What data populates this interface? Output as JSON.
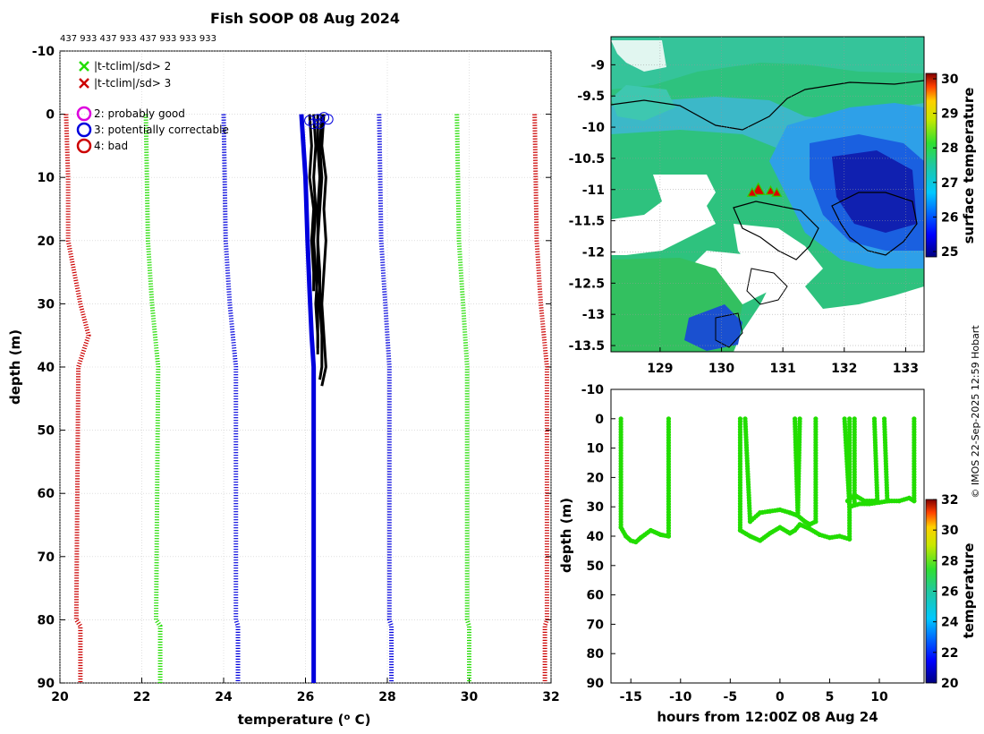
{
  "title": "Fish SOOP 08 Aug 2024",
  "cast_ids": "437 933 437 933 437 933 933 933",
  "copyright": "© IMOS 22-Sep-2025 12:59 Hobart",
  "colors": {
    "green": "#22dd00",
    "blue": "#0000dd",
    "red": "#cc0000",
    "magenta": "#dd00dd",
    "black": "#000000"
  },
  "chart_data": [
    {
      "id": "profile",
      "type": "line",
      "xlabel": "temperature (o C)",
      "xlabel_parts": [
        "temperature (",
        "o",
        " C)"
      ],
      "ylabel": "depth (m)",
      "xlim": [
        20,
        32
      ],
      "ylim": [
        -10,
        90
      ],
      "xticks": [
        "20",
        "22",
        "24",
        "26",
        "28",
        "30",
        "32"
      ],
      "yticks": [
        "-10",
        "0",
        "10",
        "20",
        "30",
        "40",
        "50",
        "60",
        "70",
        "80",
        "90"
      ],
      "legend": [
        {
          "marker": "x",
          "color": "#22dd00",
          "label": "|t-tclim|/sd> 2"
        },
        {
          "marker": "x",
          "color": "#cc0000",
          "label": "|t-tclim|/sd> 3"
        },
        {
          "marker": "o",
          "color": "#dd00dd",
          "label": "2: probably good"
        },
        {
          "marker": "o",
          "color": "#0000dd",
          "label": "3: potentially correctable"
        },
        {
          "marker": "o",
          "color": "#cc0000",
          "label": "4: bad"
        }
      ],
      "series": [
        {
          "name": "clim -3sd",
          "color": "#cc0000",
          "style": "dotted",
          "depth": [
            0,
            10,
            20,
            30,
            35,
            40,
            80,
            81,
            90
          ],
          "temp": [
            20.15,
            20.2,
            20.2,
            20.5,
            20.7,
            20.45,
            20.4,
            20.5,
            20.5
          ]
        },
        {
          "name": "clim -2sd",
          "color": "#22dd00",
          "style": "dotted",
          "depth": [
            0,
            20,
            30,
            40,
            80,
            81,
            90
          ],
          "temp": [
            22.1,
            22.15,
            22.25,
            22.4,
            22.35,
            22.45,
            22.45
          ]
        },
        {
          "name": "clim -1sd",
          "color": "#0000dd",
          "style": "dotted",
          "depth": [
            0,
            20,
            30,
            40,
            80,
            81,
            90
          ],
          "temp": [
            24.0,
            24.05,
            24.15,
            24.3,
            24.3,
            24.35,
            24.35
          ]
        },
        {
          "name": "clim mean",
          "color": "#0000dd",
          "style": "solid",
          "depth": [
            0,
            5,
            10,
            20,
            28,
            35,
            40,
            80,
            81,
            90
          ],
          "temp": [
            25.9,
            25.95,
            26.0,
            26.05,
            26.1,
            26.15,
            26.2,
            26.2,
            26.2,
            26.2
          ]
        },
        {
          "name": "clim +1sd",
          "color": "#0000dd",
          "style": "dotted",
          "depth": [
            0,
            20,
            30,
            40,
            80,
            81,
            90
          ],
          "temp": [
            27.8,
            27.85,
            27.95,
            28.05,
            28.05,
            28.1,
            28.1
          ]
        },
        {
          "name": "clim +2sd",
          "color": "#22dd00",
          "style": "dotted",
          "depth": [
            0,
            20,
            30,
            40,
            80,
            81,
            90
          ],
          "temp": [
            29.7,
            29.75,
            29.85,
            29.95,
            29.95,
            30.0,
            30.0
          ]
        },
        {
          "name": "clim +3sd",
          "color": "#cc0000",
          "style": "dotted",
          "depth": [
            0,
            20,
            30,
            40,
            80,
            81,
            90
          ],
          "temp": [
            31.6,
            31.65,
            31.75,
            31.9,
            31.9,
            31.85,
            31.85
          ]
        }
      ],
      "casts": [
        {
          "depth": [
            0,
            5,
            10,
            15,
            20,
            25,
            30,
            35,
            38
          ],
          "temp": [
            26.2,
            26.25,
            26.2,
            26.25,
            26.2,
            26.25,
            26.3,
            26.3,
            26.3
          ]
        },
        {
          "depth": [
            0,
            5,
            10,
            15,
            20,
            25,
            30,
            35,
            40,
            42
          ],
          "temp": [
            26.3,
            26.3,
            26.35,
            26.3,
            26.3,
            26.35,
            26.35,
            26.4,
            26.4,
            26.35
          ]
        },
        {
          "depth": [
            0,
            5,
            10,
            15,
            20,
            25,
            30,
            35,
            37
          ],
          "temp": [
            26.4,
            26.35,
            26.4,
            26.35,
            26.3,
            26.3,
            26.25,
            26.3,
            26.3
          ]
        },
        {
          "depth": [
            0,
            5,
            10,
            15,
            20,
            25,
            30,
            35,
            40,
            43
          ],
          "temp": [
            26.45,
            26.4,
            26.5,
            26.45,
            26.5,
            26.45,
            26.4,
            26.45,
            26.5,
            26.4
          ]
        },
        {
          "depth": [
            0,
            5,
            10,
            15,
            20,
            25,
            28
          ],
          "temp": [
            26.1,
            26.15,
            26.1,
            26.2,
            26.15,
            26.2,
            26.2
          ]
        }
      ],
      "surface_flags": [
        {
          "temp": 26.1,
          "depth": 1,
          "flag": 3
        },
        {
          "temp": 26.2,
          "depth": 1.5,
          "flag": 3
        },
        {
          "temp": 26.3,
          "depth": 0.8,
          "flag": 3
        },
        {
          "temp": 26.35,
          "depth": 1.5,
          "flag": 3
        },
        {
          "temp": 26.45,
          "depth": 0.5,
          "flag": 3
        },
        {
          "temp": 26.55,
          "depth": 0.8,
          "flag": 3
        }
      ]
    },
    {
      "id": "map",
      "type": "heatmap",
      "colorbar_label": "surface temperature",
      "xlim": [
        128.2,
        133.3
      ],
      "ylim": [
        -13.6,
        -8.55
      ],
      "xticks": [
        "129",
        "130",
        "131",
        "132",
        "133"
      ],
      "yticks": [
        "-9",
        "-9.5",
        "-10",
        "-10.5",
        "-11",
        "-11.5",
        "-12",
        "-12.5",
        "-13",
        "-13.5"
      ],
      "clim": [
        25,
        30
      ],
      "cticks": [
        "25",
        "26",
        "27",
        "28",
        "29",
        "30"
      ],
      "cast_locations": [
        {
          "lon": 130.6,
          "lat": -11.0
        },
        {
          "lon": 130.5,
          "lat": -11.05
        },
        {
          "lon": 130.8,
          "lat": -11.02
        },
        {
          "lon": 130.9,
          "lat": -11.05
        }
      ]
    },
    {
      "id": "timeseries",
      "type": "scatter",
      "xlabel": "hours from 12:00Z 08 Aug 24",
      "ylabel": "depth (m)",
      "colorbar_label": "temperature",
      "xlim": [
        -17,
        14.5
      ],
      "ylim": [
        -10,
        90
      ],
      "xticks": [
        "-15",
        "-10",
        "-5",
        "0",
        "5",
        "10"
      ],
      "yticks": [
        "-10",
        "0",
        "10",
        "20",
        "30",
        "40",
        "50",
        "60",
        "70",
        "80",
        "90"
      ],
      "clim": [
        20,
        32
      ],
      "cticks": [
        "20",
        "22",
        "24",
        "26",
        "28",
        "30",
        "32"
      ],
      "tracks": [
        [
          [
            -16.0,
            0
          ],
          [
            -16.0,
            37
          ],
          [
            -15.5,
            40
          ],
          [
            -15.0,
            41.5
          ],
          [
            -14.5,
            42
          ],
          [
            -14.0,
            40.5
          ],
          [
            -13.0,
            38
          ],
          [
            -12.0,
            39.5
          ],
          [
            -11.2,
            40
          ],
          [
            -11.2,
            0
          ]
        ],
        [
          [
            -4.0,
            0
          ],
          [
            -4.0,
            38
          ],
          [
            -3.0,
            40
          ],
          [
            -2.0,
            41.5
          ],
          [
            -1.0,
            39
          ],
          [
            0,
            37
          ],
          [
            1.0,
            39
          ],
          [
            1.5,
            38
          ],
          [
            2.0,
            36
          ],
          [
            3.0,
            37.5
          ],
          [
            4.0,
            39.5
          ],
          [
            5.0,
            40.5
          ],
          [
            6.0,
            40
          ],
          [
            7.0,
            41
          ],
          [
            7.0,
            0
          ]
        ],
        [
          [
            -3.5,
            0
          ],
          [
            -3.0,
            35
          ],
          [
            -2.0,
            32
          ],
          [
            -1.0,
            31.5
          ],
          [
            0,
            31
          ],
          [
            1.0,
            32
          ],
          [
            1.8,
            33
          ],
          [
            2.0,
            0
          ]
        ],
        [
          [
            1.5,
            0
          ],
          [
            1.8,
            33
          ],
          [
            2.5,
            35
          ],
          [
            3.0,
            36
          ],
          [
            3.6,
            35
          ],
          [
            3.6,
            0
          ]
        ],
        [
          [
            6.5,
            0
          ],
          [
            7.0,
            30
          ],
          [
            8.0,
            29
          ],
          [
            9.0,
            29
          ],
          [
            10.0,
            28.5
          ],
          [
            11.0,
            28
          ],
          [
            12.0,
            28
          ],
          [
            13.0,
            27
          ],
          [
            13.5,
            28
          ],
          [
            13.5,
            0
          ]
        ],
        [
          [
            6.8,
            28
          ],
          [
            7.5,
            26
          ],
          [
            8.5,
            28
          ],
          [
            9.5,
            28
          ]
        ],
        [
          [
            9.5,
            0
          ],
          [
            9.8,
            28
          ]
        ],
        [
          [
            10.5,
            0
          ],
          [
            10.8,
            28
          ]
        ],
        [
          [
            7.5,
            0
          ],
          [
            7.5,
            29
          ]
        ]
      ]
    }
  ]
}
